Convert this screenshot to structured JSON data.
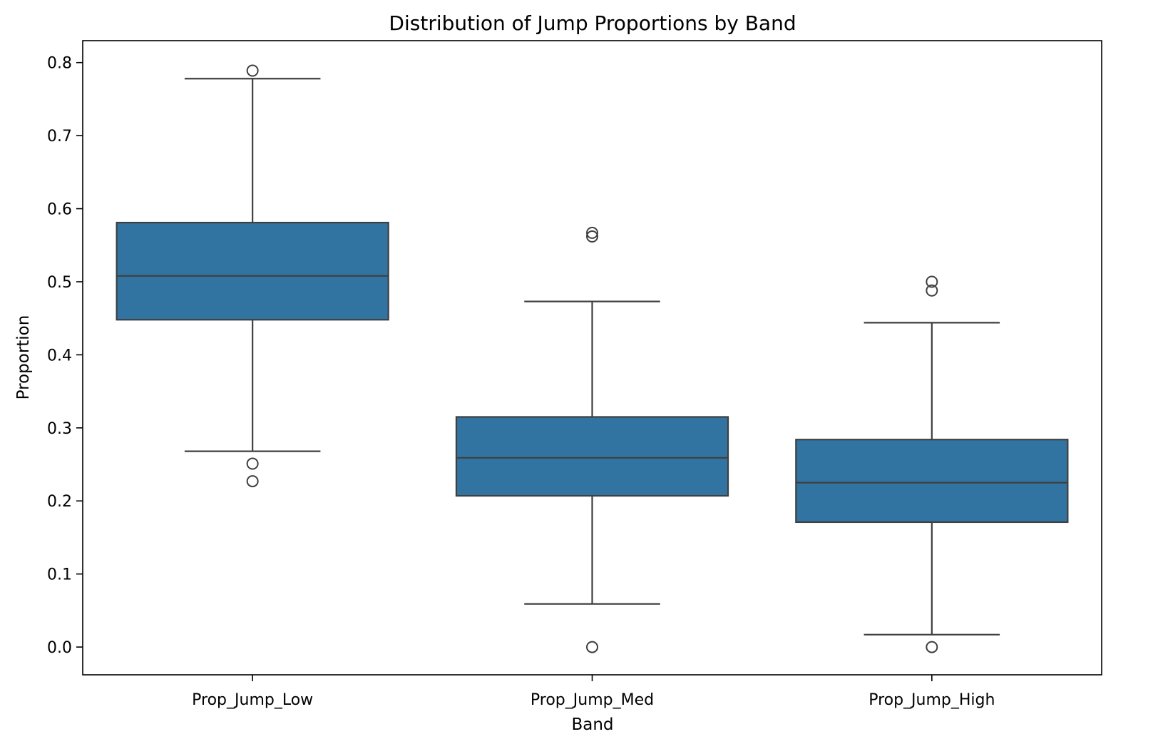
{
  "chart_data": {
    "type": "box",
    "title": "Distribution of Jump Proportions by Band",
    "xlabel": "Band",
    "ylabel": "Proportion",
    "ylim": [
      -0.038,
      0.83
    ],
    "yticks": [
      0.0,
      0.1,
      0.2,
      0.3,
      0.4,
      0.5,
      0.6,
      0.7,
      0.8
    ],
    "ytick_labels": [
      "0.0",
      "0.1",
      "0.2",
      "0.3",
      "0.4",
      "0.5",
      "0.6",
      "0.7",
      "0.8"
    ],
    "categories": [
      "Prop_Jump_Low",
      "Prop_Jump_Med",
      "Prop_Jump_High"
    ],
    "boxes": [
      {
        "category": "Prop_Jump_Low",
        "whisker_low": 0.268,
        "q1": 0.448,
        "median": 0.508,
        "q3": 0.581,
        "whisker_high": 0.778,
        "outliers": [
          0.789,
          0.251,
          0.227
        ]
      },
      {
        "category": "Prop_Jump_Med",
        "whisker_low": 0.059,
        "q1": 0.207,
        "median": 0.259,
        "q3": 0.315,
        "whisker_high": 0.473,
        "outliers": [
          0.567,
          0.562,
          0.0
        ]
      },
      {
        "category": "Prop_Jump_High",
        "whisker_low": 0.017,
        "q1": 0.171,
        "median": 0.225,
        "q3": 0.284,
        "whisker_high": 0.444,
        "outliers": [
          0.5,
          0.488,
          0.0
        ]
      }
    ],
    "colors": {
      "box_fill": "#3274a1",
      "line": "#3f3f3f",
      "axis": "#000000"
    },
    "grid": false,
    "legend": "none"
  }
}
